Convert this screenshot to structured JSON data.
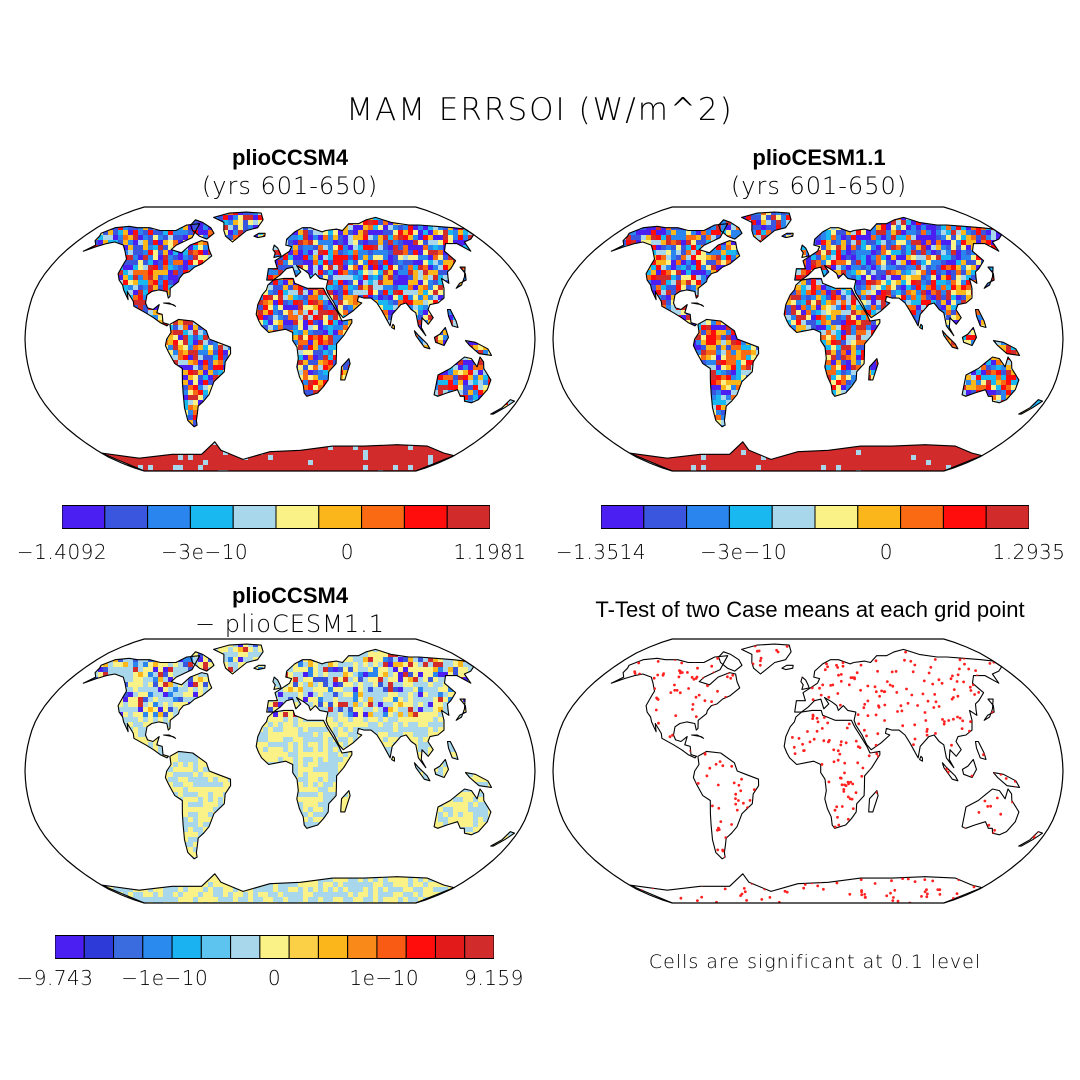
{
  "title": "MAM ERRSOI (W/m^2)",
  "panels": [
    {
      "id": "p1",
      "title": "plioCCSM4",
      "subtitle": "(yrs 601-650)",
      "colorbar": {
        "colors": [
          "#4b1ef2",
          "#3a56de",
          "#2a86ee",
          "#1ab8f0",
          "#a8d6ea",
          "#fbf287",
          "#fbb61b",
          "#f96a13",
          "#ff0c0c",
          "#d12b2b"
        ],
        "labels": [
          "−1.4092",
          "−3e−10",
          "0",
          "1.1981"
        ]
      }
    },
    {
      "id": "p2",
      "title": "plioCESM1.1",
      "subtitle": "(yrs 601-650)",
      "colorbar": {
        "colors": [
          "#4b1ef2",
          "#3a56de",
          "#2a86ee",
          "#1ab8f0",
          "#a8d6ea",
          "#fbf287",
          "#fbb61b",
          "#f96a13",
          "#ff0c0c",
          "#d12b2b"
        ],
        "labels": [
          "−1.3514",
          "−3e−10",
          "0",
          "1.2935"
        ]
      }
    },
    {
      "id": "p3",
      "title": "plioCCSM4",
      "subtitle": "− plioCESM1.1",
      "colorbar": {
        "colors": [
          "#4b1ef2",
          "#2e3ad8",
          "#3a6ce0",
          "#2a8aee",
          "#1ab2f0",
          "#5cc4ee",
          "#a8d6ea",
          "#fbf287",
          "#fbd046",
          "#fbb61b",
          "#f98a1a",
          "#f95a14",
          "#ff0c0c",
          "#e21a1a",
          "#d12b2b"
        ],
        "labels": [
          "−9.743",
          "−1e−10",
          "0",
          "1e−10",
          "9.159"
        ]
      }
    },
    {
      "id": "p4",
      "title": "T-Test of two Case means at each grid point",
      "note": "Cells are significant at 0.1 level"
    }
  ],
  "map_palette": {
    "full": [
      "#4b1ef2",
      "#3a56de",
      "#2a86ee",
      "#1ab8f0",
      "#a8d6ea",
      "#fbf287",
      "#fbb61b",
      "#f96a13",
      "#ff0c0c",
      "#d12b2b"
    ],
    "diff": [
      "#a8d6ea",
      "#fbf287"
    ],
    "diff_extreme": [
      "#4b1ef2",
      "#3a56de",
      "#2a86ee",
      "#d12b2b",
      "#fbb61b"
    ],
    "significant_dot": "#ff2020"
  }
}
